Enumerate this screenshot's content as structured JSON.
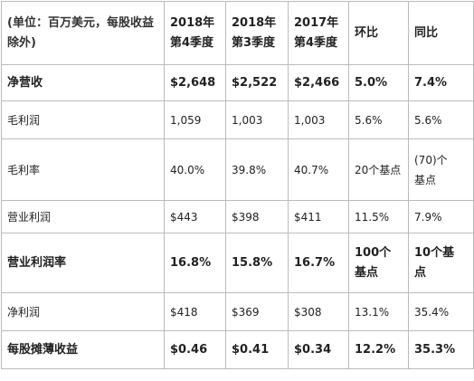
{
  "table": {
    "header": [
      "(单位：百万美元，每股收益除外)",
      [
        "2018年",
        "第4季度"
      ],
      [
        "2018年",
        "第3季度"
      ],
      [
        "2017年",
        "第4季度"
      ],
      "环比",
      "同比"
    ],
    "rows": [
      [
        "净营收",
        "$2,648",
        "$2,522",
        "$2,466",
        "5.0%",
        "7.4%"
      ],
      [
        "毛利润",
        "1,059",
        "1,003",
        "1,003",
        "5.6%",
        "5.6%"
      ],
      [
        "毛利率",
        "40.0%",
        "39.8%",
        "40.7%",
        "20个基点",
        [
          "(70)个",
          "基点"
        ]
      ],
      [
        "营业利润",
        "$443",
        "$398",
        "$411",
        "11.5%",
        "7.9%"
      ],
      [
        "营业利润率",
        "16.8%",
        "15.8%",
        "16.7%",
        [
          "100个",
          "基点"
        ],
        [
          "10个基",
          "点"
        ]
      ],
      [
        "净利润",
        "$418",
        "$369",
        "$308",
        "13.1%",
        "35.4%"
      ],
      [
        "每股摊薄收益",
        "$0.46",
        "$0.41",
        "$0.34",
        "12.2%",
        "35.3%"
      ]
    ]
  }
}
